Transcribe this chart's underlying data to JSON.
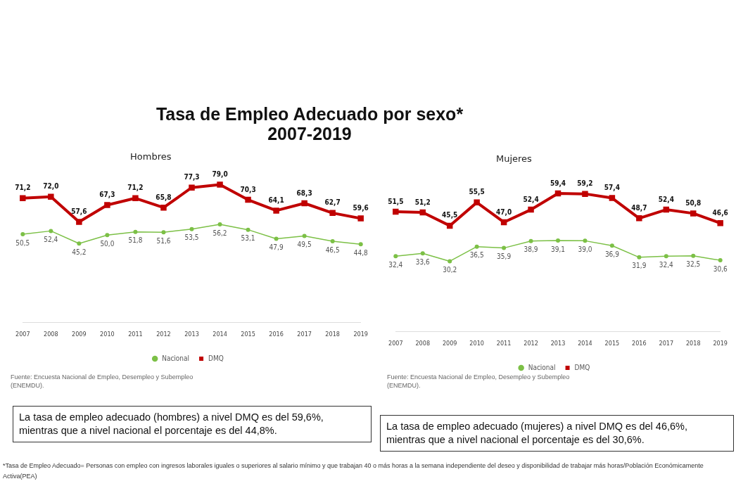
{
  "chart_data": [
    {
      "type": "line",
      "title": "Tasa de Empleo Adecuado por sexo*\n2007-2019",
      "subtitle": "Hombres",
      "categories": [
        "2007",
        "2008",
        "2009",
        "2010",
        "2011",
        "2012",
        "2013",
        "2014",
        "2015",
        "2016",
        "2017",
        "2018",
        "2019"
      ],
      "series": [
        {
          "name": "Nacional",
          "color": "#7cc046",
          "marker": "circle",
          "values": [
            50.5,
            52.4,
            45.2,
            50.0,
            51.8,
            51.6,
            53.5,
            56.2,
            53.1,
            47.9,
            49.5,
            46.5,
            44.8
          ],
          "value_labels": [
            "50,5",
            "52,4",
            "45,2",
            "50,0",
            "51,8",
            "51,6",
            "53,5",
            "56,2",
            "53,1",
            "47,9",
            "49,5",
            "46,5",
            "44,8"
          ]
        },
        {
          "name": "DMQ",
          "color": "#c00000",
          "marker": "square",
          "values": [
            71.2,
            72.0,
            57.6,
            67.3,
            71.2,
            65.8,
            77.3,
            79.0,
            70.3,
            64.1,
            68.3,
            62.7,
            59.6
          ],
          "value_labels": [
            "71,2",
            "72,0",
            "57,6",
            "67,3",
            "71,2",
            "65,8",
            "77,3",
            "79,0",
            "70,3",
            "64,1",
            "68,3",
            "62,7",
            "59,6"
          ]
        }
      ],
      "tick_labels": "x",
      "legend": "bottom",
      "annotations": [
        "Fuente: Encuesta Nacional de Empleo, Desempleo y Subempleo (ENEMDU).",
        "La tasa de empleo adecuado (hombres) a nivel DMQ es del 59,6%, mientras que a nivel nacional el porcentaje es del 44,8%.",
        "*Tasa de Empleo Adecuado= Personas con empleo con ingresos laborales iguales o superiores al salario mínimo y que trabajan 40 o más horas a la semana independiente del deseo y disponibilidad de trabajar más horas/Población Económicamente Activa(PEA)"
      ]
    },
    {
      "type": "line",
      "subtitle": "Mujeres",
      "categories": [
        "2007",
        "2008",
        "2009",
        "2010",
        "2011",
        "2012",
        "2013",
        "2014",
        "2015",
        "2016",
        "2017",
        "2018",
        "2019"
      ],
      "series": [
        {
          "name": "Nacional",
          "color": "#7cc046",
          "marker": "circle",
          "values": [
            32.4,
            33.6,
            30.2,
            36.5,
            35.9,
            38.9,
            39.1,
            39.0,
            36.9,
            31.9,
            32.4,
            32.5,
            30.6
          ],
          "value_labels": [
            "32,4",
            "33,6",
            "30,2",
            "36,5",
            "35,9",
            "38,9",
            "39,1",
            "39,0",
            "36,9",
            "31,9",
            "32,4",
            "32,5",
            "30,6"
          ]
        },
        {
          "name": "DMQ",
          "color": "#c00000",
          "marker": "square",
          "values": [
            51.5,
            51.2,
            45.5,
            55.5,
            47.0,
            52.4,
            59.4,
            59.2,
            57.4,
            48.7,
            52.4,
            50.8,
            46.6
          ],
          "value_labels": [
            "51,5",
            "51,2",
            "45,5",
            "55,5",
            "47,0",
            "52,4",
            "59,4",
            "59,2",
            "57,4",
            "48,7",
            "52,4",
            "50,8",
            "46,6"
          ]
        }
      ],
      "tick_labels": "x",
      "legend": "bottom",
      "annotations": [
        "Fuente: Encuesta Nacional de Empleo, Desempleo y Subempleo (ENEMDU).",
        "La tasa de empleo adecuado (mujeres) a nivel DMQ es del 46,6%, mientras que a nivel nacional el porcentaje es del 30,6%."
      ]
    }
  ]
}
